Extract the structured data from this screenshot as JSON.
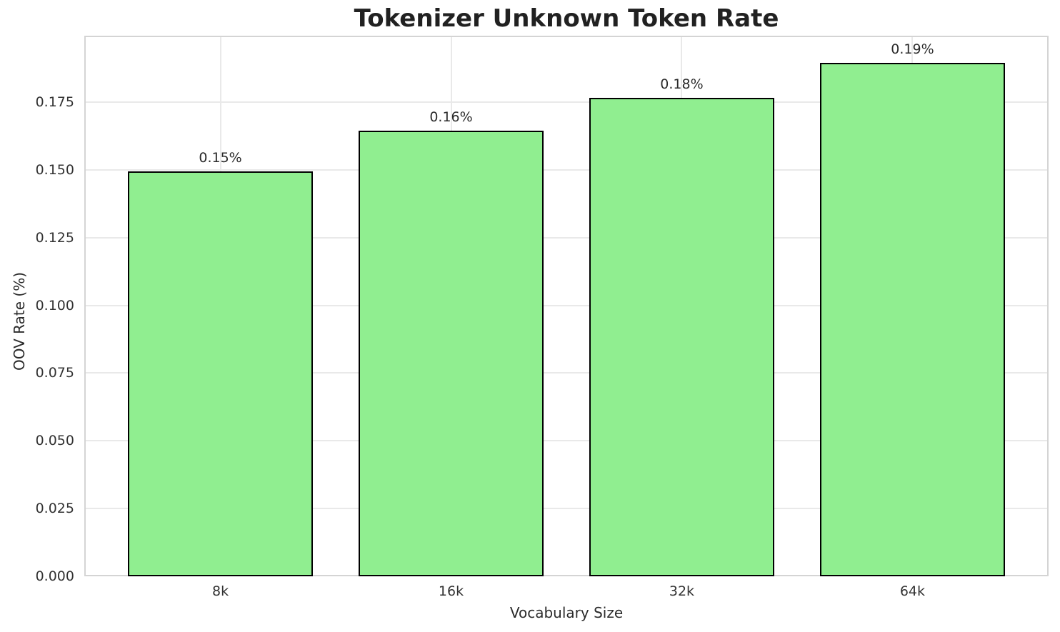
{
  "chart_data": {
    "type": "bar",
    "title": "Tokenizer Unknown Token Rate",
    "xlabel": "Vocabulary Size",
    "ylabel": "OOV Rate (%)",
    "categories": [
      "8k",
      "16k",
      "32k",
      "64k"
    ],
    "values": [
      0.1495,
      0.1645,
      0.1765,
      0.1895
    ],
    "bar_labels": [
      "0.15%",
      "0.16%",
      "0.18%",
      "0.19%"
    ],
    "ytick_values": [
      0.0,
      0.025,
      0.05,
      0.075,
      0.1,
      0.125,
      0.15,
      0.175
    ],
    "ytick_labels": [
      "0.000",
      "0.025",
      "0.050",
      "0.075",
      "0.100",
      "0.125",
      "0.150",
      "0.175"
    ],
    "ylim": [
      0,
      0.1995
    ],
    "grid": true,
    "legend": false,
    "bar_color": "#90EE90",
    "bar_edge_color": "#000000"
  },
  "colors": {
    "grid": "#e9e9e9",
    "spine": "#d4d4d4",
    "title_text": "#212121",
    "tick_text": "#333333"
  }
}
